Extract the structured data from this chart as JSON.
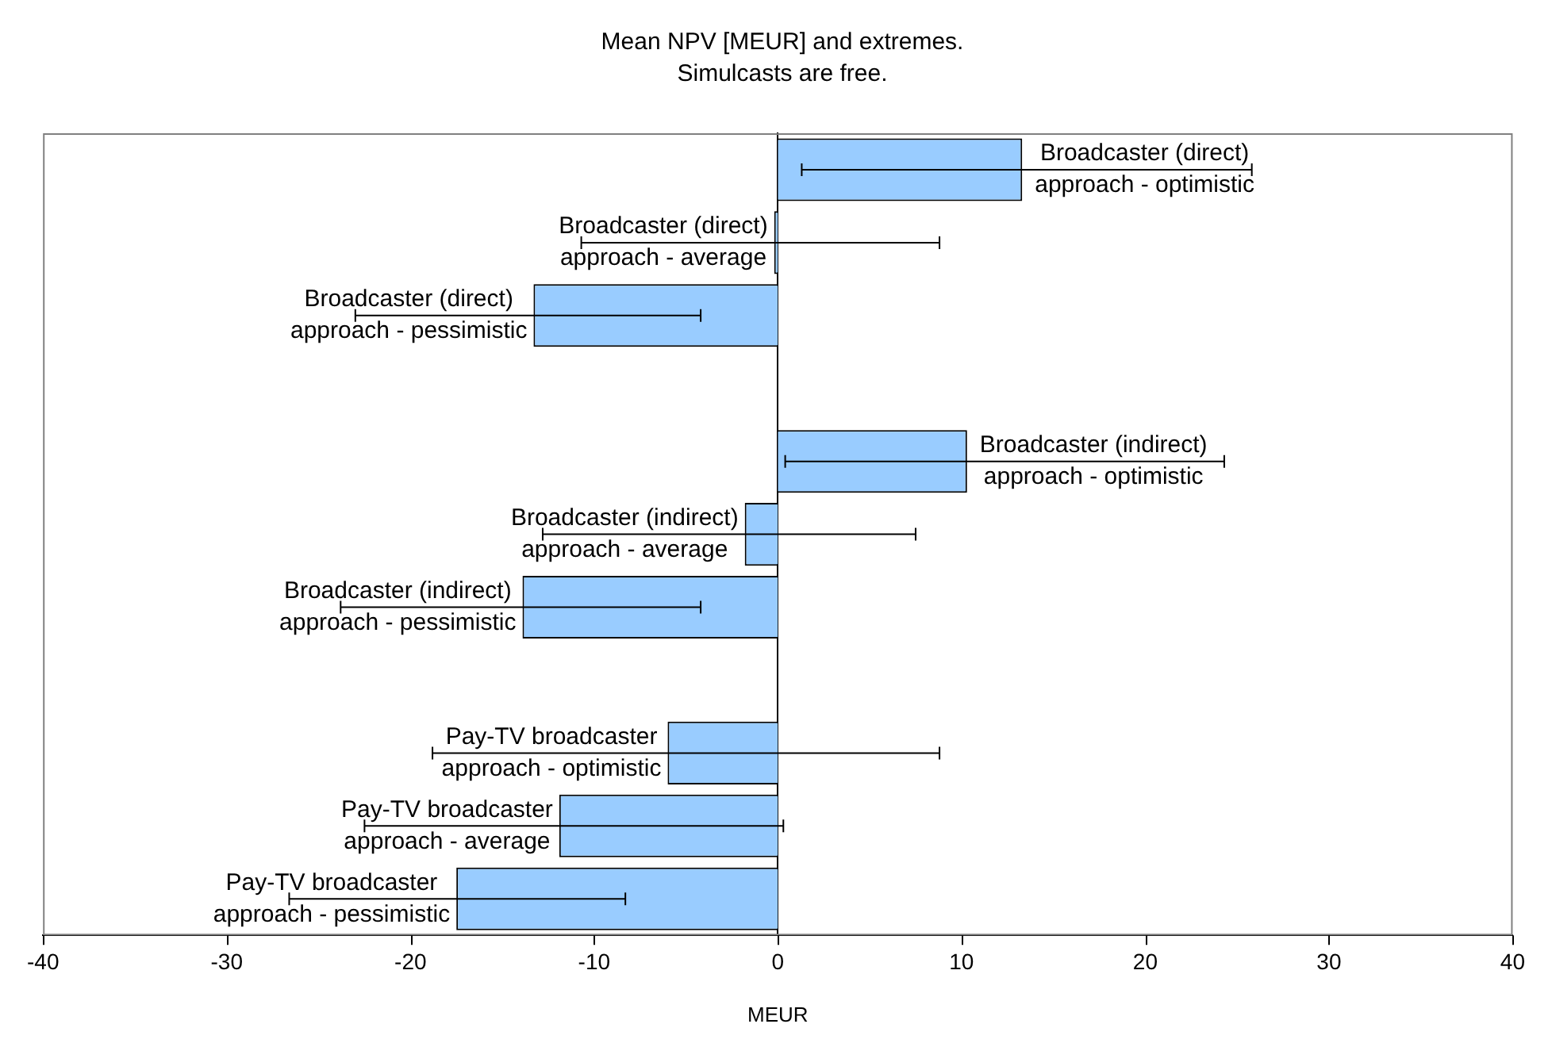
{
  "chart_data": {
    "type": "bar",
    "orientation": "horizontal",
    "title": "Mean NPV [MEUR] and extremes.",
    "subtitle": "Simulcasts are free.",
    "xlabel": "MEUR",
    "categories": [
      "Broadcaster (direct) approach - optimistic",
      "Broadcaster (direct) approach - average",
      "Broadcaster (direct) approach - pessimistic",
      null,
      "Broadcaster (indirect) approach - optimistic",
      "Broadcaster (indirect) approach - average",
      "Broadcaster (indirect) approach - pessimistic",
      null,
      "Pay-TV broadcaster approach - optimistic",
      "Pay-TV broadcaster approach - average",
      "Pay-TV broadcaster approach - pessimistic"
    ],
    "values": [
      13.3,
      -0.2,
      -13.3,
      null,
      10.3,
      -1.8,
      -13.9,
      null,
      -6.0,
      -11.9,
      -17.5
    ],
    "errors": [
      [
        1.3,
        25.8
      ],
      [
        -10.7,
        8.8
      ],
      [
        -23.0,
        -4.2
      ],
      null,
      [
        0.4,
        24.3
      ],
      [
        -12.8,
        7.5
      ],
      [
        -23.8,
        -4.2
      ],
      null,
      [
        -18.8,
        8.8
      ],
      [
        -22.5,
        0.3
      ],
      [
        -26.6,
        -8.3
      ]
    ],
    "color": "#99ccff",
    "xlim": [
      -40,
      40
    ],
    "xticks": [
      -40,
      -30,
      -20,
      -10,
      0,
      10,
      20,
      30,
      40
    ],
    "legend": false
  }
}
